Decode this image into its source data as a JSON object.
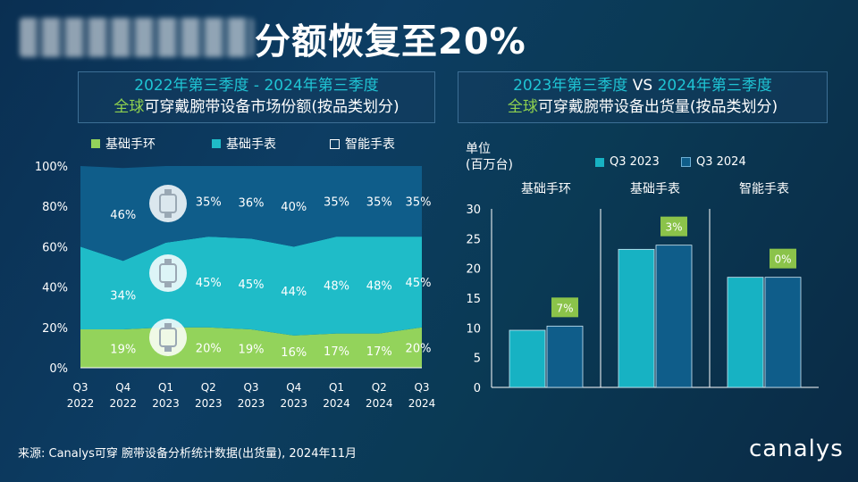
{
  "title": "分额恢复至20%",
  "left_box": {
    "line1_a": "2022年第三季度",
    "line1_sep": " - ",
    "line1_b": "2024年第三季度",
    "line2_a": "全球",
    "line2_b": "可穿戴腕带设备市场份额(按品类划分)"
  },
  "right_box": {
    "line1_a": "2023年第三季度",
    "line1_vs": " VS ",
    "line1_b": "2024年第三季度",
    "line2_a": "全球",
    "line2_b": "可穿戴腕带设备出货量(按品类划分)"
  },
  "colors": {
    "basic_band": "#93d35b",
    "basic_watch": "#1fbcc8",
    "smartwatch": "#0f5d8a",
    "q3_2023": "#17b2c3",
    "q3_2024": "#0f5d8a",
    "label_box": "#8bc34a"
  },
  "chart_data": [
    {
      "type": "area",
      "stacked": true,
      "categories": [
        "Q3\n2022",
        "Q4\n2022",
        "Q1\n2023",
        "Q2\n2023",
        "Q3\n2023",
        "Q4\n2023",
        "Q1\n2024",
        "Q2\n2024",
        "Q3\n2024"
      ],
      "series": [
        {
          "name": "基础手环",
          "values": [
            19,
            19,
            20,
            20,
            19,
            16,
            17,
            17,
            20
          ],
          "labels": [
            "",
            "19%",
            "",
            "20%",
            "19%",
            "16%",
            "17%",
            "17%",
            "20%"
          ]
        },
        {
          "name": "基础手表",
          "values": [
            41,
            34,
            42,
            45,
            45,
            44,
            48,
            48,
            45
          ],
          "labels": [
            "",
            "34%",
            "",
            "45%",
            "45%",
            "44%",
            "48%",
            "48%",
            "45%"
          ]
        },
        {
          "name": "智能手表",
          "values": [
            40,
            46,
            38,
            35,
            36,
            40,
            35,
            35,
            35
          ],
          "labels": [
            "",
            "46%",
            "",
            "35%",
            "36%",
            "40%",
            "35%",
            "35%",
            "35%"
          ]
        }
      ],
      "yticks": [
        "0%",
        "20%",
        "40%",
        "60%",
        "80%",
        "100%"
      ],
      "ylim": [
        0,
        100
      ],
      "icons": [
        "smartwatch-icon",
        "basic-watch-icon",
        "band-icon"
      ]
    },
    {
      "type": "bar",
      "categories": [
        "基础手环",
        "基础手表",
        "智能手表"
      ],
      "series": [
        {
          "name": "Q3 2023",
          "values": [
            9.6,
            23.2,
            18.5
          ]
        },
        {
          "name": "Q3 2024",
          "values": [
            10.3,
            23.9,
            18.5
          ]
        }
      ],
      "growth_labels": [
        "7%",
        "3%",
        "0%"
      ],
      "ylabel_line1": "单位",
      "ylabel_line2": "(百万台)",
      "yticks": [
        "0",
        "5",
        "10",
        "15",
        "20",
        "25",
        "30"
      ],
      "ylim": [
        0,
        30
      ]
    }
  ],
  "source": "来源: Canalys可穿 腕带设备分析统计数据(出货量), 2024年11月",
  "logo": "canalys"
}
